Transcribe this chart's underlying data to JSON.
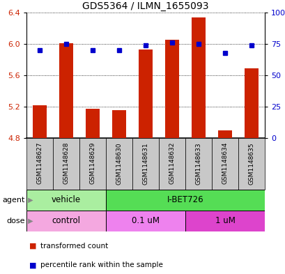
{
  "title": "GDS5364 / ILMN_1655093",
  "samples": [
    "GSM1148627",
    "GSM1148628",
    "GSM1148629",
    "GSM1148630",
    "GSM1148631",
    "GSM1148632",
    "GSM1148633",
    "GSM1148634",
    "GSM1148635"
  ],
  "red_values": [
    5.22,
    6.01,
    5.17,
    5.16,
    5.93,
    6.05,
    6.34,
    4.9,
    5.69
  ],
  "blue_values": [
    70,
    75,
    70,
    70,
    74,
    76,
    75,
    68,
    74
  ],
  "ylim": [
    4.8,
    6.4
  ],
  "y_ticks": [
    4.8,
    5.2,
    5.6,
    6.0,
    6.4
  ],
  "y2_ticks": [
    0,
    25,
    50,
    75,
    100
  ],
  "y2_labels": [
    "0",
    "25",
    "50",
    "75",
    "100%"
  ],
  "agent_groups": [
    {
      "label": "vehicle",
      "start": 0,
      "end": 3,
      "color": "#AAEEA0"
    },
    {
      "label": "I-BET726",
      "start": 3,
      "end": 9,
      "color": "#55DD55"
    }
  ],
  "dose_groups": [
    {
      "label": "control",
      "start": 0,
      "end": 3,
      "color": "#F4A8E0"
    },
    {
      "label": "0.1 uM",
      "start": 3,
      "end": 6,
      "color": "#EE82EE"
    },
    {
      "label": "1 uM",
      "start": 6,
      "end": 9,
      "color": "#DD44CC"
    }
  ],
  "bar_color": "#CC2200",
  "dot_color": "#0000CC",
  "sample_box_color": "#C8C8C8",
  "grid_color": "#000000",
  "left_label_color": "#CC2200",
  "right_label_color": "#0000CC",
  "legend_red_label": "transformed count",
  "legend_blue_label": "percentile rank within the sample"
}
